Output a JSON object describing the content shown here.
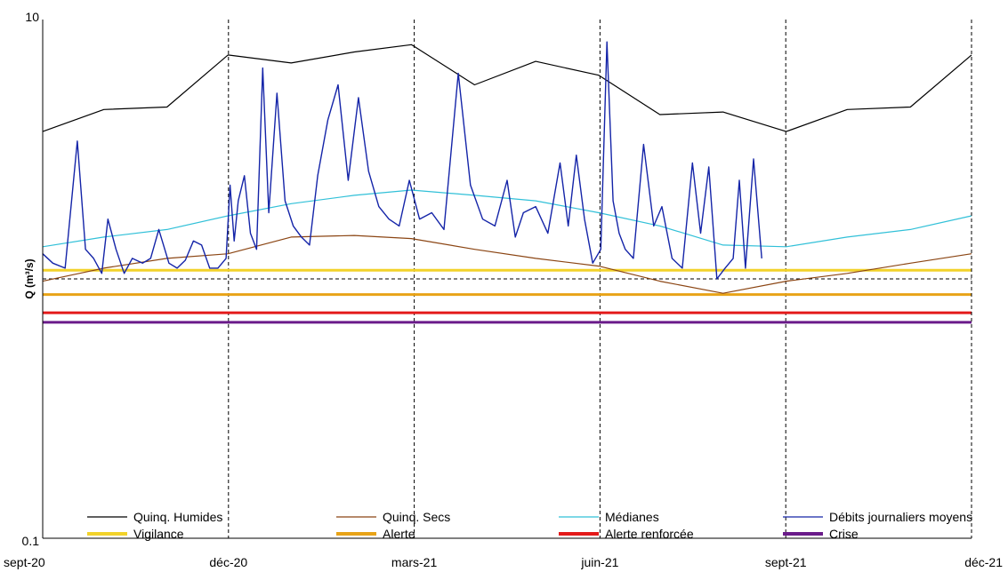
{
  "chart_data": {
    "type": "line",
    "ylabel": "Q (m³/s)",
    "yscale": "log",
    "ylim": [
      0.1,
      10
    ],
    "y_ticks": [
      "10",
      "0.1"
    ],
    "x_ticks": [
      "sept-20",
      "déc-20",
      "mars-21",
      "juin-21",
      "sept-21",
      "déc-21"
    ],
    "xlim": [
      "2020-09-01",
      "2021-12-01"
    ],
    "grid": "vertical dashed at each tick, horizontal dashed at 1",
    "legend_position": "bottom",
    "series": [
      {
        "name": "Quinq. Humides",
        "color": "#000000",
        "x": [
          "2020-09-01",
          "2020-10-01",
          "2020-11-01",
          "2020-12-01",
          "2021-01-01",
          "2021-02-01",
          "2021-03-01",
          "2021-04-01",
          "2021-05-01",
          "2021-06-01",
          "2021-07-01",
          "2021-08-01",
          "2021-09-01",
          "2021-10-01",
          "2021-11-01",
          "2021-12-01"
        ],
        "values": [
          3.7,
          4.5,
          4.6,
          7.3,
          6.8,
          7.5,
          8.0,
          5.6,
          6.9,
          6.1,
          4.3,
          4.4,
          3.7,
          4.5,
          4.6,
          7.3
        ]
      },
      {
        "name": "Quinq. Secs",
        "color": "#8b4513",
        "x": [
          "2020-09-01",
          "2020-10-01",
          "2020-11-01",
          "2020-12-01",
          "2021-01-01",
          "2021-02-01",
          "2021-03-01",
          "2021-04-01",
          "2021-05-01",
          "2021-06-01",
          "2021-07-01",
          "2021-08-01",
          "2021-09-01",
          "2021-10-01",
          "2021-11-01",
          "2021-12-01"
        ],
        "values": [
          0.98,
          1.1,
          1.2,
          1.25,
          1.45,
          1.47,
          1.43,
          1.3,
          1.2,
          1.12,
          0.98,
          0.88,
          0.98,
          1.05,
          1.15,
          1.25
        ]
      },
      {
        "name": "Médianes",
        "color": "#31c0d8",
        "x": [
          "2020-09-01",
          "2020-10-01",
          "2020-11-01",
          "2020-12-01",
          "2021-01-01",
          "2021-02-01",
          "2021-03-01",
          "2021-04-01",
          "2021-05-01",
          "2021-06-01",
          "2021-07-01",
          "2021-08-01",
          "2021-09-01",
          "2021-10-01",
          "2021-11-01",
          "2021-12-01"
        ],
        "values": [
          1.33,
          1.45,
          1.55,
          1.75,
          1.95,
          2.1,
          2.2,
          2.1,
          2.0,
          1.8,
          1.6,
          1.35,
          1.33,
          1.45,
          1.55,
          1.75
        ]
      },
      {
        "name": "Débits journaliers moyens",
        "color": "#1424a8",
        "x": [
          "2020-09-01",
          "2020-09-06",
          "2020-09-12",
          "2020-09-18",
          "2020-09-22",
          "2020-09-26",
          "2020-09-30",
          "2020-10-03",
          "2020-10-07",
          "2020-10-11",
          "2020-10-15",
          "2020-10-20",
          "2020-10-24",
          "2020-10-28",
          "2020-11-02",
          "2020-11-06",
          "2020-11-10",
          "2020-11-14",
          "2020-11-18",
          "2020-11-22",
          "2020-11-26",
          "2020-11-30",
          "2020-12-02",
          "2020-12-04",
          "2020-12-06",
          "2020-12-09",
          "2020-12-12",
          "2020-12-15",
          "2020-12-18",
          "2020-12-21",
          "2020-12-25",
          "2020-12-29",
          "2021-01-02",
          "2021-01-06",
          "2021-01-10",
          "2021-01-14",
          "2021-01-19",
          "2021-01-24",
          "2021-01-29",
          "2021-02-03",
          "2021-02-08",
          "2021-02-13",
          "2021-02-18",
          "2021-02-23",
          "2021-02-28",
          "2021-03-05",
          "2021-03-11",
          "2021-03-17",
          "2021-03-24",
          "2021-03-30",
          "2021-04-05",
          "2021-04-11",
          "2021-04-17",
          "2021-04-21",
          "2021-04-25",
          "2021-05-01",
          "2021-05-07",
          "2021-05-13",
          "2021-05-17",
          "2021-05-21",
          "2021-05-25",
          "2021-05-29",
          "2021-06-02",
          "2021-06-05",
          "2021-06-08",
          "2021-06-11",
          "2021-06-14",
          "2021-06-18",
          "2021-06-23",
          "2021-06-28",
          "2021-07-02",
          "2021-07-07",
          "2021-07-12",
          "2021-07-17",
          "2021-07-21",
          "2021-07-25",
          "2021-07-29",
          "2021-08-02",
          "2021-08-06",
          "2021-08-09",
          "2021-08-12",
          "2021-08-16",
          "2021-08-20"
        ],
        "values": [
          1.25,
          1.15,
          1.1,
          3.4,
          1.3,
          1.2,
          1.05,
          1.7,
          1.3,
          1.05,
          1.2,
          1.15,
          1.2,
          1.55,
          1.15,
          1.1,
          1.18,
          1.4,
          1.35,
          1.1,
          1.1,
          1.2,
          2.3,
          1.4,
          2.0,
          2.5,
          1.5,
          1.3,
          6.5,
          1.8,
          5.2,
          2.0,
          1.6,
          1.45,
          1.35,
          2.5,
          4.1,
          5.6,
          2.4,
          5.0,
          2.6,
          1.9,
          1.7,
          1.6,
          2.4,
          1.7,
          1.8,
          1.55,
          6.2,
          2.3,
          1.7,
          1.6,
          2.4,
          1.45,
          1.8,
          1.9,
          1.5,
          2.8,
          1.6,
          3.0,
          1.7,
          1.15,
          1.3,
          8.2,
          2.0,
          1.5,
          1.3,
          1.2,
          3.3,
          1.6,
          1.9,
          1.2,
          1.1,
          2.8,
          1.5,
          2.7,
          1.0,
          1.1,
          1.2,
          2.4,
          1.1,
          2.9,
          1.2
        ]
      }
    ],
    "thresholds": [
      {
        "name": "Vigilance",
        "value": 1.08,
        "color": "#f2d22a"
      },
      {
        "name": "Alerte",
        "value": 0.87,
        "color": "#e8a317"
      },
      {
        "name": "Alerte renforcée",
        "value": 0.74,
        "color": "#e41a1a"
      },
      {
        "name": "Crise",
        "value": 0.68,
        "color": "#6a1b8a"
      }
    ]
  }
}
